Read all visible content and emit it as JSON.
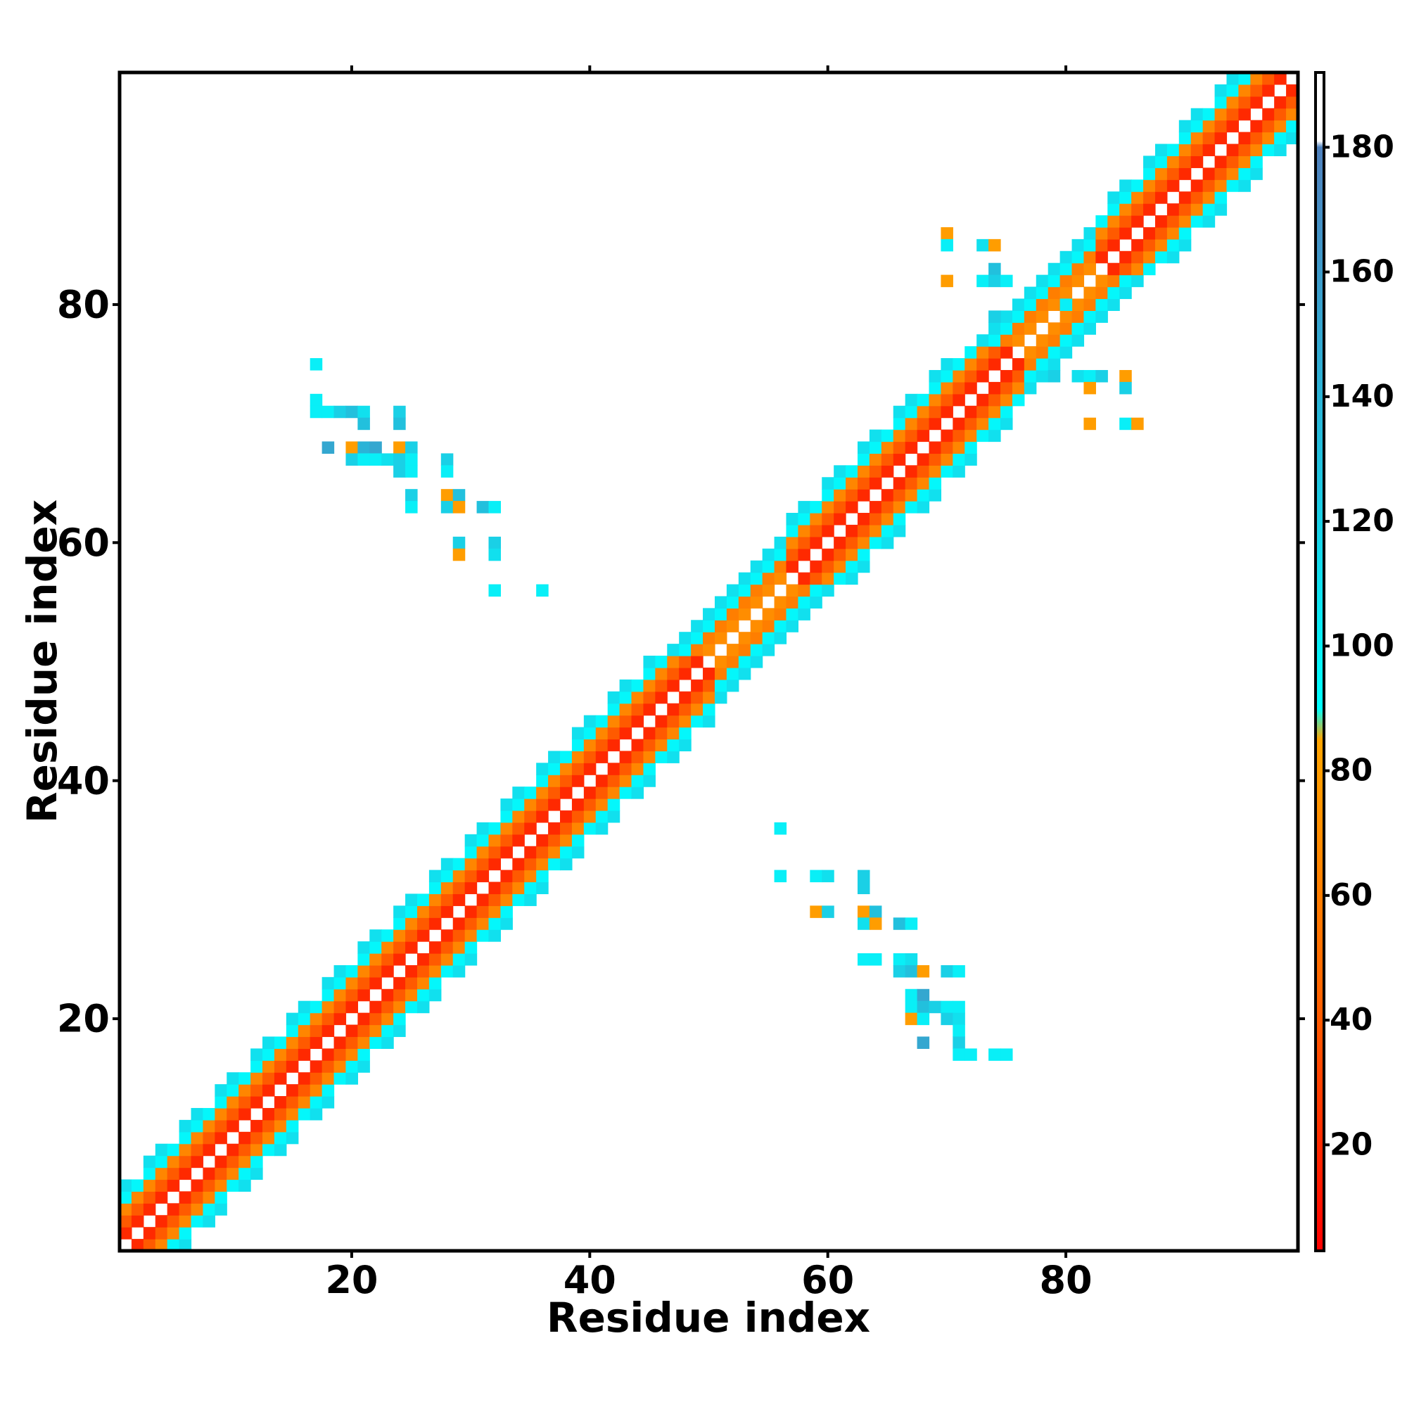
{
  "chart_data": {
    "type": "heatmap",
    "title": "",
    "xlabel": "Residue index",
    "ylabel": "Residue index",
    "xlim": [
      0.5,
      99.5
    ],
    "ylim": [
      0.5,
      99.5
    ],
    "x_ticks": [
      20,
      40,
      60,
      80
    ],
    "y_ticks": [
      20,
      40,
      60,
      80
    ],
    "grid": false,
    "legend": "none",
    "colorbar": {
      "range": [
        3,
        192
      ],
      "ticks": [
        20,
        40,
        60,
        80,
        100,
        120,
        140,
        160,
        180
      ],
      "stops": [
        {
          "value": 3,
          "color": "#ff0000"
        },
        {
          "value": 45,
          "color": "#ff6600"
        },
        {
          "value": 85,
          "color": "#ffa500"
        },
        {
          "value": 90,
          "color": "#00ffff"
        },
        {
          "value": 130,
          "color": "#22c0dd"
        },
        {
          "value": 180,
          "color": "#4f81bd"
        },
        {
          "value": 181,
          "color": "#ffffff"
        },
        {
          "value": 192,
          "color": "#ffffff"
        }
      ]
    },
    "diagonal_band": {
      "range": [
        1,
        99
      ],
      "helix_ranges": [
        [
          1,
          41
        ],
        [
          42,
          50
        ],
        [
          57,
          76
        ],
        [
          83,
          99
        ]
      ],
      "helix_pattern": {
        "offset_1": 20,
        "offset_2": 40,
        "offset_3": 65,
        "offset_4": 95,
        "offset_5": 110
      },
      "strand_pattern": {
        "offset_1": 70,
        "offset_2": 60,
        "offset_3": 95,
        "offset_4": 110
      }
    },
    "offdiagonal_cells": [
      [
        17,
        75,
        100
      ],
      [
        17,
        72,
        100
      ],
      [
        17,
        71,
        100
      ],
      [
        18,
        71,
        100
      ],
      [
        19,
        71,
        120
      ],
      [
        20,
        71,
        130
      ],
      [
        21,
        71,
        110
      ],
      [
        21,
        70,
        130
      ],
      [
        24,
        71,
        120
      ],
      [
        24,
        70,
        130
      ],
      [
        18,
        68,
        150
      ],
      [
        20,
        68,
        80
      ],
      [
        21,
        68,
        140
      ],
      [
        22,
        68,
        150
      ],
      [
        24,
        68,
        80
      ],
      [
        25,
        68,
        120
      ],
      [
        20,
        67,
        120
      ],
      [
        21,
        67,
        100
      ],
      [
        22,
        67,
        100
      ],
      [
        23,
        67,
        110
      ],
      [
        24,
        67,
        120
      ],
      [
        25,
        67,
        100
      ],
      [
        28,
        67,
        120
      ],
      [
        24,
        66,
        120
      ],
      [
        25,
        66,
        100
      ],
      [
        28,
        66,
        100
      ],
      [
        25,
        64,
        120
      ],
      [
        28,
        64,
        80
      ],
      [
        29,
        64,
        130
      ],
      [
        25,
        63,
        100
      ],
      [
        28,
        63,
        120
      ],
      [
        29,
        63,
        80
      ],
      [
        31,
        63,
        130
      ],
      [
        32,
        63,
        100
      ],
      [
        29,
        60,
        120
      ],
      [
        32,
        60,
        120
      ],
      [
        29,
        59,
        80
      ],
      [
        32,
        59,
        110
      ],
      [
        32,
        56,
        100
      ],
      [
        36,
        56,
        100
      ],
      [
        70,
        86,
        80
      ],
      [
        70,
        85,
        100
      ],
      [
        73,
        85,
        110
      ],
      [
        74,
        85,
        80
      ],
      [
        74,
        83,
        130
      ],
      [
        70,
        82,
        80
      ],
      [
        73,
        82,
        100
      ],
      [
        74,
        82,
        120
      ],
      [
        75,
        82,
        100
      ],
      [
        74,
        79,
        120
      ],
      [
        74,
        78,
        100
      ],
      [
        76,
        74,
        80
      ],
      [
        79,
        74,
        120
      ],
      [
        81,
        74,
        110
      ],
      [
        82,
        74,
        100
      ],
      [
        83,
        74,
        120
      ],
      [
        85,
        74,
        80
      ],
      [
        82,
        73,
        80
      ],
      [
        85,
        73,
        120
      ],
      [
        82,
        70,
        80
      ],
      [
        85,
        70,
        100
      ],
      [
        86,
        70,
        80
      ],
      [
        56,
        36,
        100
      ],
      [
        56,
        32,
        100
      ],
      [
        59,
        32,
        100
      ],
      [
        60,
        32,
        110
      ],
      [
        63,
        32,
        120
      ],
      [
        63,
        31,
        120
      ],
      [
        59,
        29,
        80
      ],
      [
        60,
        29,
        120
      ],
      [
        63,
        29,
        80
      ],
      [
        64,
        29,
        130
      ],
      [
        63,
        28,
        110
      ],
      [
        64,
        28,
        80
      ],
      [
        66,
        28,
        130
      ],
      [
        67,
        28,
        100
      ],
      [
        63,
        25,
        100
      ],
      [
        64,
        25,
        100
      ],
      [
        66,
        25,
        100
      ],
      [
        67,
        25,
        110
      ],
      [
        66,
        24,
        120
      ],
      [
        67,
        24,
        130
      ],
      [
        68,
        24,
        80
      ],
      [
        70,
        24,
        120
      ],
      [
        71,
        24,
        100
      ],
      [
        67,
        22,
        100
      ],
      [
        68,
        22,
        150
      ],
      [
        67,
        21,
        100
      ],
      [
        68,
        21,
        130
      ],
      [
        69,
        21,
        120
      ],
      [
        70,
        21,
        100
      ],
      [
        71,
        21,
        100
      ],
      [
        67,
        20,
        80
      ],
      [
        68,
        20,
        100
      ],
      [
        70,
        20,
        120
      ],
      [
        71,
        20,
        110
      ],
      [
        71,
        19,
        100
      ],
      [
        68,
        18,
        150
      ],
      [
        71,
        18,
        120
      ],
      [
        71,
        17,
        100
      ],
      [
        72,
        17,
        100
      ],
      [
        74,
        17,
        100
      ],
      [
        75,
        17,
        100
      ],
      [
        80,
        80,
        100
      ],
      [
        79,
        80,
        120
      ],
      [
        80,
        81,
        110
      ],
      [
        78,
        80,
        100
      ],
      [
        80,
        78,
        100
      ],
      [
        81,
        79,
        120
      ],
      [
        79,
        81,
        100
      ],
      [
        81,
        77,
        120
      ],
      [
        77,
        81,
        100
      ],
      [
        82,
        78,
        100
      ],
      [
        78,
        82,
        100
      ],
      [
        53,
        54,
        110
      ],
      [
        54,
        53,
        100
      ],
      [
        52,
        54,
        100
      ],
      [
        54,
        52,
        110
      ],
      [
        55,
        53,
        130
      ],
      [
        53,
        55,
        100
      ],
      [
        51,
        54,
        120
      ],
      [
        54,
        51,
        100
      ],
      [
        55,
        52,
        100
      ],
      [
        52,
        55,
        110
      ]
    ]
  }
}
